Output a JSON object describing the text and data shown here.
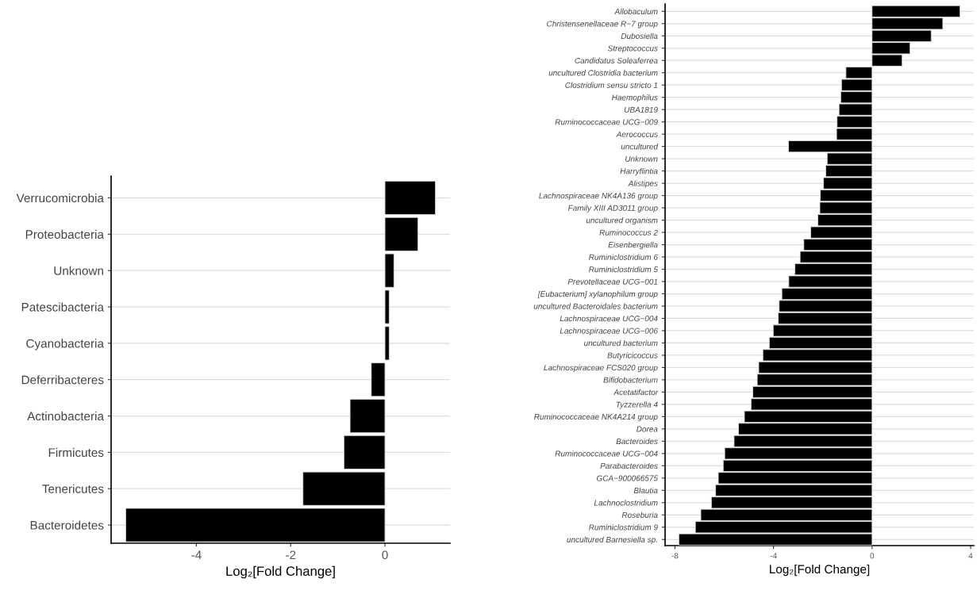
{
  "chart_data": [
    {
      "type": "bar",
      "orientation": "horizontal",
      "xlabel": "Log₂[Fold Change]",
      "grid": "y",
      "color": "#000000",
      "categories": [
        "Verrucomicrobia",
        "Proteobacteria",
        "Unknown",
        "Patescibacteria",
        "Cyanobacteria",
        "Deferribacteres",
        "Actinobacteria",
        "Firmicutes",
        "Tenericutes",
        "Bacteroidetes"
      ],
      "values": [
        1.07,
        0.7,
        0.19,
        0.09,
        0.09,
        -0.29,
        -0.74,
        -0.87,
        -1.74,
        -5.5
      ],
      "xlim": [
        -5.81,
        1.38
      ],
      "xticks": [
        -4,
        -2,
        0
      ]
    },
    {
      "type": "bar",
      "orientation": "horizontal",
      "xlabel": "Log₂[Fold Change]",
      "grid": "y",
      "color": "#000000",
      "categories": [
        "Allobaculum",
        "Christensenellaceae R−7 group",
        "Dubosiella",
        "Streptococcus",
        "Candidatus Soleaferrea",
        "uncultured Clostridia bacterium",
        "Clostridium sensu stricto 1",
        "Haemophilus",
        "UBA1819",
        "Ruminococcaceae UCG−009",
        "Aerococcus",
        "uncultured",
        "Unknown",
        "Harryflintia",
        "Alistipes",
        "Lachnospiraceae NK4A136 group",
        "Family XIII AD3011 group",
        "uncultured organism",
        "Ruminococcus 2",
        "Eisenbergiella",
        "Ruminiclostridium 6",
        "Ruminiclostridium 5",
        "Prevotellaceae UCG−001",
        "[Eubacterium] xylanophilum group",
        "uncultured Bacteroidales bacterium",
        "Lachnospiraceae UCG−004",
        "Lachnospiraceae UCG−006",
        "uncultured bacterium",
        "Butyricicoccus",
        "Lachnospiraceae FCS020 group",
        "Bifidobacterium",
        "Acetatifactor",
        "Tyzzerella 4",
        "Ruminococcaceae NK4A214 group",
        "Dorea",
        "Bacteroides",
        "Ruminococcaceae UCG−004",
        "Parabacteroides",
        "GCA−900066575",
        "Blautia",
        "Lachnoclostridium",
        "Roseburia",
        "Ruminiclostridium 9",
        "uncultured Barnesiella sp."
      ],
      "values": [
        3.57,
        2.87,
        2.4,
        1.54,
        1.22,
        -1.06,
        -1.24,
        -1.27,
        -1.34,
        -1.42,
        -1.44,
        -3.39,
        -1.82,
        -1.88,
        -1.97,
        -2.1,
        -2.12,
        -2.2,
        -2.49,
        -2.77,
        -2.92,
        -3.13,
        -3.38,
        -3.66,
        -3.77,
        -3.81,
        -4.01,
        -4.17,
        -4.43,
        -4.6,
        -4.66,
        -4.84,
        -4.91,
        -5.18,
        -5.42,
        -5.6,
        -5.98,
        -6.04,
        -6.24,
        -6.35,
        -6.52,
        -6.95,
        -7.17,
        -7.84
      ],
      "xlim": [
        -8.4,
        4.13
      ],
      "xticks": [
        -8,
        -4,
        0,
        4
      ]
    }
  ]
}
